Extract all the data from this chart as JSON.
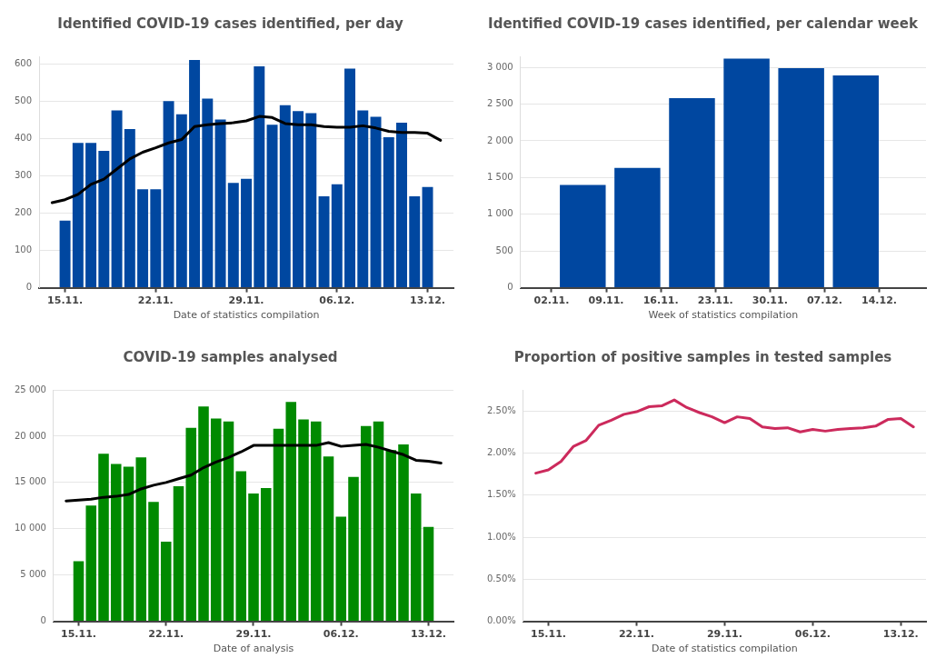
{
  "chart_data": [
    {
      "type": "bar",
      "title": "Identified COVID-19 cases identified, per day",
      "xlabel": "Date of statistics compilation",
      "grid": "y",
      "x": [
        "--11-15",
        "--11-16",
        "--11-17",
        "--11-18",
        "--11-19",
        "--11-20",
        "--11-21",
        "--11-22",
        "--11-23",
        "--11-24",
        "--11-25",
        "--11-26",
        "--11-27",
        "--11-28",
        "--11-29",
        "--11-30",
        "--12-01",
        "--12-02",
        "--12-03",
        "--12-04",
        "--12-05",
        "--12-06",
        "--12-07",
        "--12-08",
        "--12-09",
        "--12-10",
        "--12-11",
        "--12-12",
        "--12-13"
      ],
      "xlim": [
        "--11-13",
        "--12-15"
      ],
      "xticks": [
        {
          "value": "--11-15",
          "label": "15.11."
        },
        {
          "value": "--11-22",
          "label": "22.11."
        },
        {
          "value": "--11-29",
          "label": "29.11."
        },
        {
          "value": "--12-06",
          "label": "06.12."
        },
        {
          "value": "--12-13",
          "label": "13.12."
        }
      ],
      "ylim": [
        0,
        620
      ],
      "yticks": [
        0,
        100,
        200,
        300,
        400,
        500,
        600
      ],
      "series": [
        {
          "color": "#0047a0",
          "values": [
            180,
            388,
            388,
            367,
            475,
            425,
            264,
            264,
            500,
            465,
            610,
            507,
            451,
            281,
            292,
            593,
            437,
            489,
            473,
            468,
            245,
            277,
            587,
            475,
            458,
            403,
            442,
            245,
            270
          ]
        },
        {
          "type": "line",
          "color": "#000000",
          "x": [
            "--11-14",
            "--11-15",
            "--11-16",
            "--11-17",
            "--11-18",
            "--11-19",
            "--11-20",
            "--11-21",
            "--11-22",
            "--11-23",
            "--11-24",
            "--11-25",
            "--11-26",
            "--11-27",
            "--11-28",
            "--11-29",
            "--11-30",
            "--12-01",
            "--12-02",
            "--12-03",
            "--12-04",
            "--12-05",
            "--12-06",
            "--12-07",
            "--12-08",
            "--12-09",
            "--12-10",
            "--12-11",
            "--12-12",
            "--12-13",
            "--12-14"
          ],
          "values": [
            228,
            236,
            250,
            277,
            291,
            318,
            345,
            363,
            375,
            388,
            397,
            432,
            437,
            440,
            442,
            447,
            459,
            456,
            440,
            437,
            437,
            432,
            430,
            430,
            434,
            428,
            419,
            416,
            416,
            414,
            395
          ]
        }
      ]
    },
    {
      "type": "bar",
      "title": "Identified COVID-19 cases identified, per calendar week",
      "xlabel": "Week of statistics compilation",
      "grid": "y",
      "x": [
        "--11-06",
        "--11-13",
        "--11-20",
        "--11-27",
        "--12-04",
        "--12-11"
      ],
      "xlim": [
        "--10-29",
        "--12-20"
      ],
      "xticks": [
        {
          "value": "--11-02",
          "label": "02.11."
        },
        {
          "value": "--11-09",
          "label": "09.11."
        },
        {
          "value": "--11-16",
          "label": "16.11."
        },
        {
          "value": "--11-23",
          "label": "23.11."
        },
        {
          "value": "--11-30",
          "label": "30.11."
        },
        {
          "value": "--12-07",
          "label": "07.12."
        },
        {
          "value": "--12-14",
          "label": "14.12."
        }
      ],
      "ylim": [
        0,
        3150
      ],
      "yticks": [
        0,
        500,
        {
          "value": 1000,
          "label": "1 000"
        },
        {
          "value": 1500,
          "label": "1 500"
        },
        {
          "value": 2000,
          "label": "2 000"
        },
        {
          "value": 2500,
          "label": "2 500"
        },
        {
          "value": 3000,
          "label": "3 000"
        }
      ],
      "series": [
        {
          "color": "#0047a0",
          "values": [
            1400,
            1630,
            2580,
            3120,
            2990,
            2890
          ]
        }
      ]
    },
    {
      "type": "bar",
      "title": "COVID-19 samples analysed",
      "xlabel": "Date of analysis",
      "grid": "y",
      "x": [
        "--11-15",
        "--11-16",
        "--11-17",
        "--11-18",
        "--11-19",
        "--11-20",
        "--11-21",
        "--11-22",
        "--11-23",
        "--11-24",
        "--11-25",
        "--11-26",
        "--11-27",
        "--11-28",
        "--11-29",
        "--11-30",
        "--12-01",
        "--12-02",
        "--12-03",
        "--12-04",
        "--12-05",
        "--12-06",
        "--12-07",
        "--12-08",
        "--12-09",
        "--12-10",
        "--12-11",
        "--12-12",
        "--12-13"
      ],
      "xlim": [
        "--11-13",
        "--12-15"
      ],
      "xticks": [
        {
          "value": "--11-15",
          "label": "15.11."
        },
        {
          "value": "--11-22",
          "label": "22.11."
        },
        {
          "value": "--11-29",
          "label": "29.11."
        },
        {
          "value": "--12-06",
          "label": "06.12."
        },
        {
          "value": "--12-13",
          "label": "13.12."
        }
      ],
      "ylim": [
        0,
        25000
      ],
      "yticks": [
        0,
        {
          "value": 5000,
          "label": "5 000"
        },
        {
          "value": 10000,
          "label": "10 000"
        },
        {
          "value": 15000,
          "label": "15 000"
        },
        {
          "value": 20000,
          "label": "20 000"
        },
        {
          "value": 25000,
          "label": "25 000"
        }
      ],
      "series": [
        {
          "color": "#008a00",
          "values": [
            6500,
            12500,
            18100,
            17000,
            16700,
            17700,
            12900,
            8600,
            14600,
            20900,
            23200,
            21900,
            21600,
            16200,
            13800,
            14400,
            20800,
            23700,
            21800,
            21600,
            17800,
            11300,
            15600,
            21100,
            21600,
            18500,
            19100,
            13800,
            10200
          ]
        },
        {
          "type": "line",
          "color": "#000000",
          "x": [
            "--11-14",
            "--11-15",
            "--11-16",
            "--11-17",
            "--11-18",
            "--11-19",
            "--11-20",
            "--11-21",
            "--11-22",
            "--11-23",
            "--11-24",
            "--11-25",
            "--11-26",
            "--11-27",
            "--11-28",
            "--11-29",
            "--11-30",
            "--12-01",
            "--12-02",
            "--12-03",
            "--12-04",
            "--12-05",
            "--12-06",
            "--12-07",
            "--12-08",
            "--12-09",
            "--12-10",
            "--12-11",
            "--12-12",
            "--12-13",
            "--12-14"
          ],
          "values": [
            13000,
            13100,
            13200,
            13400,
            13500,
            13700,
            14300,
            14700,
            15000,
            15400,
            15800,
            16600,
            17200,
            17700,
            18300,
            19000,
            19000,
            19000,
            19000,
            19000,
            19000,
            19300,
            18900,
            19000,
            19100,
            18800,
            18400,
            18000,
            17400,
            17300,
            17100
          ]
        }
      ]
    },
    {
      "type": "line",
      "title": "Proportion of positive samples in tested samples",
      "xlabel": "Date of statistics compilation",
      "grid": "y",
      "xlim": [
        "--11-13",
        "--12-15"
      ],
      "xticks": [
        {
          "value": "--11-15",
          "label": "15.11."
        },
        {
          "value": "--11-22",
          "label": "22.11."
        },
        {
          "value": "--11-29",
          "label": "29.11."
        },
        {
          "value": "--12-06",
          "label": "06.12."
        },
        {
          "value": "--12-13",
          "label": "13.12."
        }
      ],
      "ylim": [
        0,
        2.75
      ],
      "yticks": [
        {
          "value": 0,
          "label": "0.00%"
        },
        {
          "value": 0.5,
          "label": "0.50%"
        },
        {
          "value": 1,
          "label": "1.00%"
        },
        {
          "value": 1.5,
          "label": "1.50%"
        },
        {
          "value": 2,
          "label": "2.00%"
        },
        {
          "value": 2.5,
          "label": "2.50%"
        }
      ],
      "series": [
        {
          "color": "#cc2a5c",
          "x": [
            "--11-14",
            "--11-15",
            "--11-16",
            "--11-17",
            "--11-18",
            "--11-19",
            "--11-20",
            "--11-21",
            "--11-22",
            "--11-23",
            "--11-24",
            "--11-25",
            "--11-26",
            "--11-27",
            "--11-28",
            "--11-29",
            "--11-30",
            "--12-01",
            "--12-02",
            "--12-03",
            "--12-04",
            "--12-05",
            "--12-06",
            "--12-07",
            "--12-08",
            "--12-09",
            "--12-10",
            "--12-11",
            "--12-12",
            "--12-13",
            "--12-14"
          ],
          "values": [
            1.76,
            1.8,
            1.9,
            2.08,
            2.15,
            2.33,
            2.39,
            2.46,
            2.49,
            2.55,
            2.56,
            2.63,
            2.54,
            2.48,
            2.43,
            2.36,
            2.43,
            2.41,
            2.31,
            2.29,
            2.3,
            2.25,
            2.28,
            2.26,
            2.28,
            2.29,
            2.3,
            2.32,
            2.4,
            2.41,
            2.31
          ]
        }
      ]
    }
  ]
}
